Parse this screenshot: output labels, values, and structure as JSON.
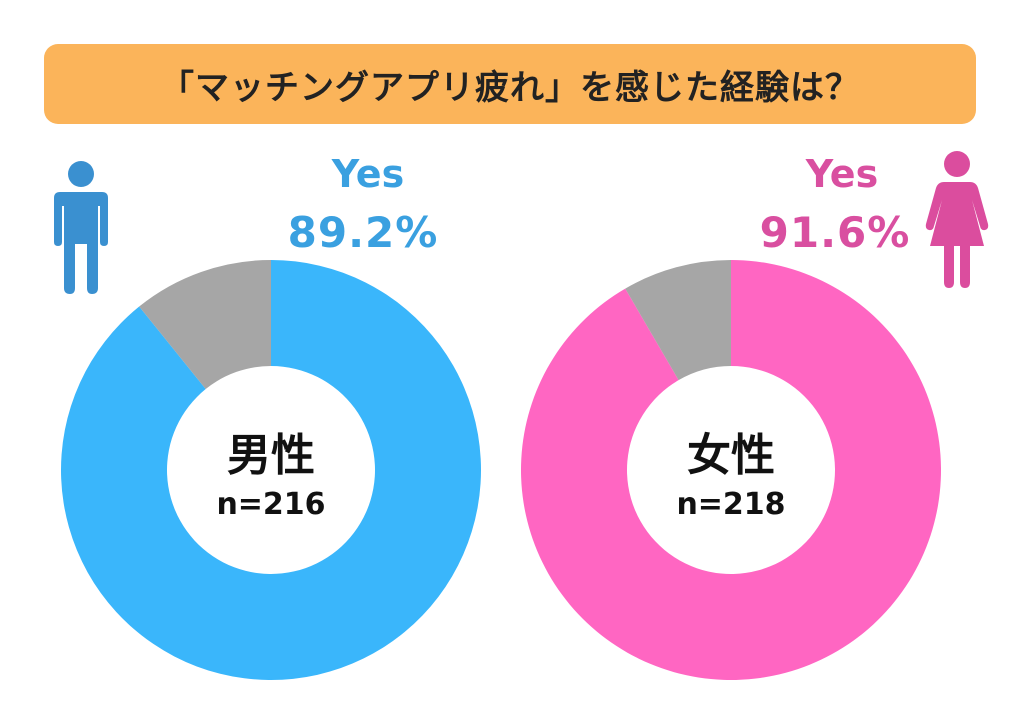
{
  "title": "「マッチングアプリ疲れ」を感じた経験は？",
  "colors": {
    "banner": "#fbb45a",
    "male": "#3ab6fb",
    "female": "#ff66c2",
    "no": "#a6a6a6",
    "male_icon": "#3a90d0",
    "female_icon": "#db4d9e",
    "male_label": "#3aa0e0",
    "female_label": "#d94fa0"
  },
  "icons": {
    "male": "male-person-icon",
    "female": "female-person-icon"
  },
  "chart_data": [
    {
      "type": "pie",
      "donut": true,
      "center_title": "男性",
      "center_n": "n=216",
      "highlight_label": "Yes",
      "highlight_percent": "89.2%",
      "slices": [
        {
          "label": "Yes",
          "value": 89.2,
          "color": "#3ab6fb"
        },
        {
          "label": "",
          "value": 10.8,
          "color": "#a6a6a6"
        }
      ]
    },
    {
      "type": "pie",
      "donut": true,
      "center_title": "女性",
      "center_n": "n=218",
      "highlight_label": "Yes",
      "highlight_percent": "91.6%",
      "slices": [
        {
          "label": "Yes",
          "value": 91.6,
          "color": "#ff66c2"
        },
        {
          "label": "",
          "value": 8.4,
          "color": "#a6a6a6"
        }
      ]
    }
  ]
}
